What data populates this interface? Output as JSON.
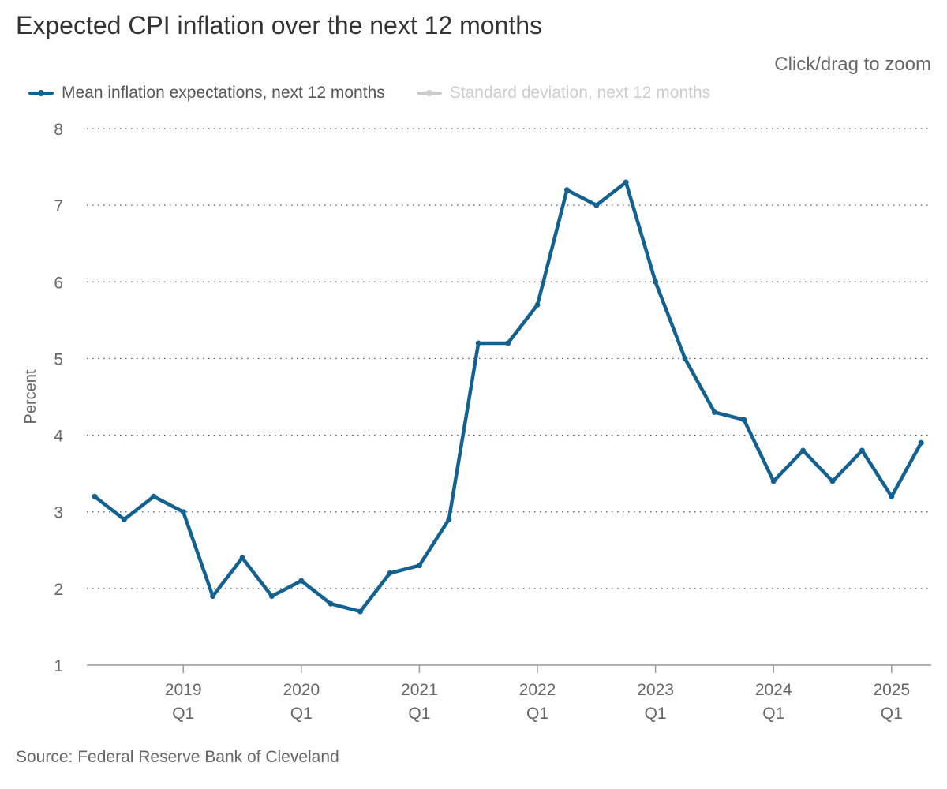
{
  "header": {
    "title": "Expected CPI inflation over the next 12 months",
    "zoom_hint": "Click/drag to zoom"
  },
  "legend": [
    {
      "label": "Mean inflation expectations, next 12 months",
      "color": "#13618f",
      "active": true
    },
    {
      "label": "Standard deviation, next 12 months",
      "color": "#cccccc",
      "active": false
    }
  ],
  "footer": {
    "source": "Source: Federal Reserve Bank of Cleveland"
  },
  "chart_data": {
    "type": "line",
    "title": "Expected CPI inflation over the next 12 months",
    "ylabel": "Percent",
    "xlabel": "",
    "ylim": [
      1,
      8
    ],
    "yticks": [
      1,
      2,
      3,
      4,
      5,
      6,
      7,
      8
    ],
    "grid": true,
    "legend_position": "top-left",
    "x_ticks": [
      {
        "year": "2019",
        "quarter": "Q1"
      },
      {
        "year": "2020",
        "quarter": "Q1"
      },
      {
        "year": "2021",
        "quarter": "Q1"
      },
      {
        "year": "2022",
        "quarter": "Q1"
      },
      {
        "year": "2023",
        "quarter": "Q1"
      },
      {
        "year": "2024",
        "quarter": "Q1"
      },
      {
        "year": "2025",
        "quarter": "Q1"
      }
    ],
    "x": [
      "2018 Q2",
      "2018 Q3",
      "2018 Q4",
      "2019 Q1",
      "2019 Q2",
      "2019 Q3",
      "2019 Q4",
      "2020 Q1",
      "2020 Q2",
      "2020 Q3",
      "2020 Q4",
      "2021 Q1",
      "2021 Q2",
      "2021 Q3",
      "2021 Q4",
      "2022 Q1",
      "2022 Q2",
      "2022 Q3",
      "2022 Q4",
      "2023 Q1",
      "2023 Q2",
      "2023 Q3",
      "2023 Q4",
      "2024 Q1",
      "2024 Q2",
      "2024 Q3",
      "2024 Q4",
      "2025 Q1",
      "2025 Q2"
    ],
    "series": [
      {
        "name": "Mean inflation expectations, next 12 months",
        "color": "#13618f",
        "values": [
          3.2,
          2.9,
          3.2,
          3.0,
          1.9,
          2.4,
          1.9,
          2.1,
          1.8,
          1.7,
          2.2,
          2.3,
          2.9,
          5.2,
          5.2,
          5.7,
          7.2,
          7.0,
          7.3,
          6.0,
          5.0,
          4.3,
          4.2,
          3.4,
          3.8,
          3.4,
          3.8,
          3.2,
          3.9
        ]
      }
    ]
  }
}
